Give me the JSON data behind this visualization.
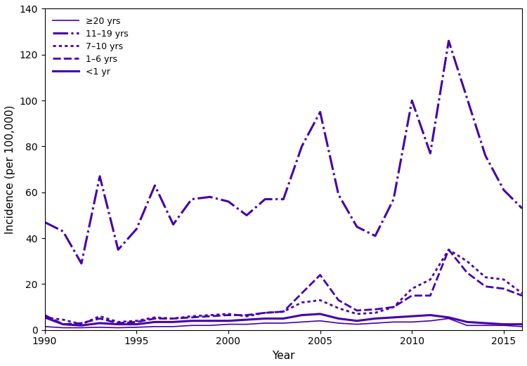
{
  "years": [
    1990,
    1991,
    1992,
    1993,
    1994,
    1995,
    1996,
    1997,
    1998,
    1999,
    2000,
    2001,
    2002,
    2003,
    2004,
    2005,
    2006,
    2007,
    2008,
    2009,
    2010,
    2011,
    2012,
    2013,
    2014,
    2015,
    2016
  ],
  "ge20_yrs": [
    1.5,
    1.0,
    1.0,
    1.2,
    1.0,
    1.2,
    1.5,
    1.5,
    2.0,
    2.0,
    2.5,
    2.5,
    3.0,
    3.0,
    3.5,
    4.0,
    3.0,
    2.5,
    3.0,
    3.5,
    3.5,
    4.0,
    5.0,
    2.0,
    2.0,
    2.0,
    1.5
  ],
  "age11_19_yrs": [
    47.0,
    43.0,
    29.0,
    67.0,
    35.0,
    44.0,
    63.0,
    46.0,
    57.0,
    58.0,
    56.0,
    50.0,
    57.0,
    57.0,
    80.0,
    95.0,
    59.0,
    45.0,
    41.0,
    57.0,
    100.0,
    77.0,
    126.0,
    101.0,
    76.0,
    61.0,
    53.0
  ],
  "age7_10_yrs": [
    5.5,
    4.5,
    2.5,
    6.0,
    3.5,
    4.0,
    5.5,
    5.0,
    6.0,
    6.5,
    7.0,
    6.0,
    7.5,
    8.0,
    12.0,
    13.0,
    9.5,
    7.0,
    7.5,
    10.0,
    18.0,
    22.0,
    35.0,
    30.0,
    23.0,
    22.0,
    16.0
  ],
  "age1_6_yrs": [
    6.5,
    2.5,
    3.0,
    5.0,
    3.0,
    3.5,
    5.0,
    5.0,
    5.5,
    6.0,
    6.5,
    6.5,
    7.5,
    8.0,
    16.0,
    24.0,
    13.0,
    8.5,
    9.0,
    10.0,
    15.0,
    15.0,
    35.0,
    25.0,
    19.0,
    18.0,
    15.0
  ],
  "age_lt1_yr": [
    5.5,
    2.5,
    2.0,
    3.0,
    2.5,
    2.5,
    3.5,
    3.5,
    4.0,
    4.0,
    4.0,
    4.5,
    5.0,
    5.0,
    6.5,
    7.0,
    5.0,
    4.0,
    5.0,
    5.5,
    6.0,
    6.5,
    5.5,
    3.5,
    3.0,
    2.5,
    2.5
  ],
  "color": "#4400aa",
  "xlabel": "Year",
  "ylabel": "Incidence (per 100,000)",
  "ylim": [
    0,
    140
  ],
  "xlim": [
    1990,
    2016
  ],
  "yticks": [
    0,
    20,
    40,
    60,
    80,
    100,
    120,
    140
  ],
  "xticks": [
    1990,
    1995,
    2000,
    2005,
    2010,
    2015
  ],
  "legend_labels": [
    "≥20 yrs",
    "11–19 yrs",
    "7–10 yrs",
    "1–6 yrs",
    "<1 yr"
  ]
}
